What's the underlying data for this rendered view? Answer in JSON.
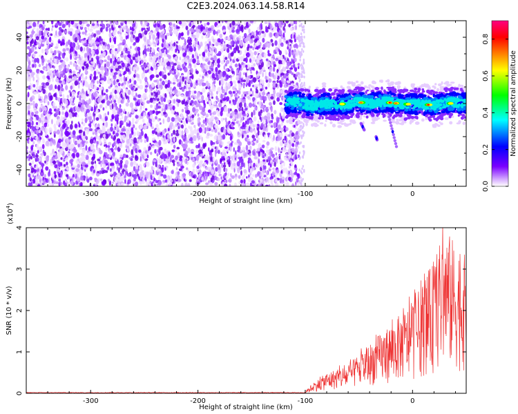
{
  "title": "C2E3.2024.063.14.58.R14",
  "chart_data": [
    {
      "type": "heatmap",
      "xlabel": "Height of straight line (km)",
      "ylabel": "Frequency (Hz)",
      "xlim": [
        -360,
        50
      ],
      "ylim": [
        -50,
        50
      ],
      "xticks": [
        -300,
        -200,
        -100,
        0
      ],
      "yticks": [
        -40,
        -20,
        0,
        20,
        40
      ],
      "noise_region_x": [
        -360,
        -106
      ],
      "signal_band": {
        "x_start": -118,
        "x_end": 50,
        "center_frequency_hz": 0,
        "half_width_hz": 5,
        "peak_positions_km": [
          -65,
          -48,
          -22,
          -15,
          -5,
          15,
          35
        ]
      },
      "side_traces": [
        {
          "x": [
            -48,
            -45
          ],
          "y": [
            -12,
            -16
          ]
        },
        {
          "x": [
            -34,
            -33
          ],
          "y": [
            -20,
            -22
          ]
        },
        {
          "x": [
            -22,
            -15
          ],
          "y": [
            -8,
            -26
          ]
        }
      ],
      "colorbar": {
        "label": "Normalized spectral amplitude",
        "range": [
          0.0,
          0.9
        ],
        "ticks": [
          "0.0",
          "0.2",
          "0.4",
          "0.6",
          "0.8"
        ],
        "colors": [
          "#ffffff",
          "#7a00ff",
          "#0000ff",
          "#00ffff",
          "#00ff00",
          "#ffff00",
          "#ff8000",
          "#ff0000",
          "#ff0080"
        ]
      },
      "grid": false
    },
    {
      "type": "line",
      "xlabel": "Height of straight line (km)",
      "ylabel": "SNR (10 * v/v)",
      "scale_label": "(x10",
      "scale_exponent": "4",
      "scale_close": ")",
      "xlim": [
        -360,
        50
      ],
      "ylim": [
        0,
        40000
      ],
      "xticks": [
        -300,
        -200,
        -100,
        0
      ],
      "yticks": [
        0,
        1,
        2,
        3,
        4
      ],
      "line_color": "#ee3333",
      "baseline_until_km": -100,
      "envelope": [
        {
          "x": -100,
          "y": 200
        },
        {
          "x": -95,
          "y": 2000
        },
        {
          "x": -80,
          "y": 5000
        },
        {
          "x": -60,
          "y": 7000
        },
        {
          "x": -40,
          "y": 12000
        },
        {
          "x": -20,
          "y": 17000
        },
        {
          "x": 0,
          "y": 22000
        },
        {
          "x": 20,
          "y": 32000
        },
        {
          "x": 30,
          "y": 40000
        },
        {
          "x": 50,
          "y": 33000
        }
      ],
      "grid": false
    }
  ]
}
